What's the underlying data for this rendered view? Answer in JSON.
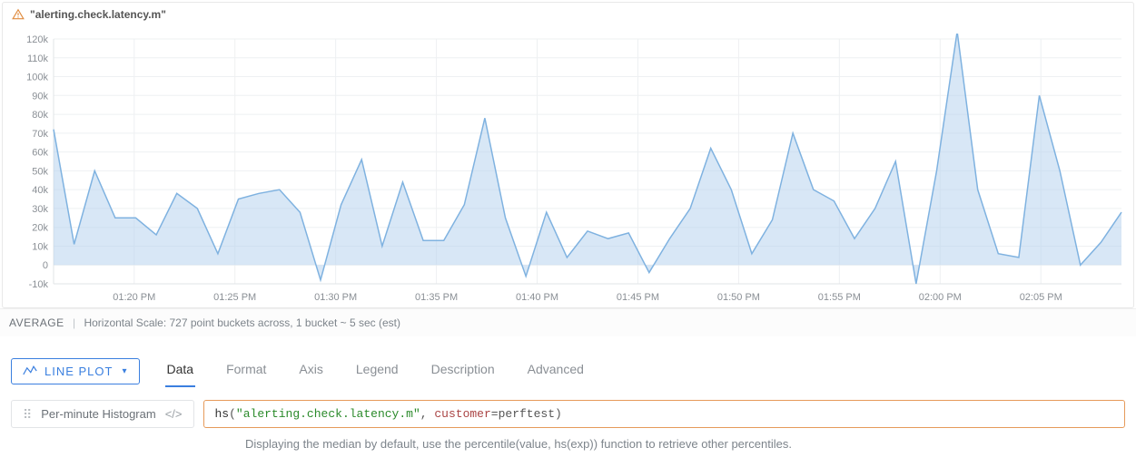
{
  "chart": {
    "title": "\"alerting.check.latency.m\"",
    "type": "area",
    "y_axis": {
      "min": -10000,
      "max": 120000,
      "tick_step": 10000,
      "tick_labels": [
        "-10k",
        "0",
        "10k",
        "20k",
        "30k",
        "40k",
        "50k",
        "60k",
        "70k",
        "80k",
        "90k",
        "100k",
        "110k",
        "120k"
      ]
    },
    "x_axis": {
      "tick_labels": [
        "01:20 PM",
        "01:25 PM",
        "01:30 PM",
        "01:35 PM",
        "01:40 PM",
        "01:45 PM",
        "01:50 PM",
        "01:55 PM",
        "02:00 PM",
        "02:05 PM"
      ]
    },
    "series": {
      "color_line": "#7fb2e0",
      "color_fill": "#b8d4ef",
      "fill_opacity": 0.55,
      "line_width": 1.5,
      "values": [
        72000,
        11000,
        50000,
        25000,
        25000,
        16000,
        38000,
        30000,
        6000,
        35000,
        38000,
        40000,
        28000,
        -8000,
        32000,
        56000,
        10000,
        44000,
        13000,
        13000,
        32000,
        78000,
        25000,
        -6000,
        28000,
        4000,
        18000,
        14000,
        17000,
        -4000,
        14000,
        30000,
        62000,
        40000,
        6000,
        24000,
        70000,
        40000,
        34000,
        14000,
        30000,
        55000,
        -10000,
        50000,
        124000,
        40000,
        6000,
        4000,
        90000,
        50000,
        0,
        12000,
        28000
      ]
    },
    "background_color": "#ffffff",
    "grid_color": "#eef0f2",
    "axis_color": "#e1e4e7",
    "label_color": "#8a8f95",
    "label_fontsize": 11
  },
  "statusbar": {
    "aggregation": "AVERAGE",
    "scale_text": "Horizontal Scale: 727 point buckets across, 1 bucket ~ 5 sec (est)"
  },
  "config": {
    "plot_type_label": "LINE PLOT",
    "tabs": [
      "Data",
      "Format",
      "Axis",
      "Legend",
      "Description",
      "Advanced"
    ],
    "active_tab": "Data",
    "query_label": "Per-minute Histogram",
    "query": {
      "fn": "hs",
      "str_arg": "\"alerting.check.latency.m\"",
      "kw": "customer",
      "kw_val": "perftest"
    },
    "hint": "Displaying the median by default, use the percentile(value, hs(exp)) function to retrieve other percentiles."
  }
}
